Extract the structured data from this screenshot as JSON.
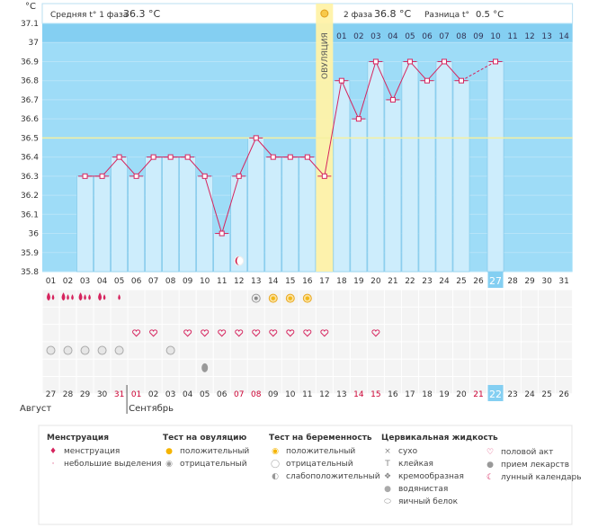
{
  "chart_data": {
    "type": "line",
    "ylabel": "°C",
    "y_ticks": [
      "37.1",
      "37",
      "36.9",
      "36.8",
      "36.7",
      "36.6",
      "36.5",
      "36.4",
      "36.3",
      "36.2",
      "36.1",
      "36",
      "35.9",
      "35.8"
    ],
    "ylim": [
      35.8,
      37.1
    ],
    "coverline": 36.5,
    "phase1": {
      "label": "Средняя t° 1 фаза",
      "value": "36.3 °C"
    },
    "phase2": {
      "label": "2 фаза",
      "value": "36.8 °C"
    },
    "difference": {
      "label": "Разница t°",
      "value": "0.5 °C"
    },
    "ovulation_label": "ОВУЛЯЦИЯ",
    "ovulation_day": 17,
    "cycle_days": [
      "01",
      "02",
      "03",
      "04",
      "05",
      "06",
      "07",
      "08",
      "09",
      "10",
      "11",
      "12",
      "13",
      "14",
      "15",
      "16",
      "17",
      "18",
      "19",
      "20",
      "21",
      "22",
      "23",
      "24",
      "25",
      "26",
      "27",
      "28",
      "29",
      "30",
      "31"
    ],
    "luteal_days": [
      "01",
      "02",
      "03",
      "04",
      "05",
      "06",
      "07",
      "08",
      "09",
      "10",
      "11",
      "12",
      "13",
      "14"
    ],
    "temperatures": [
      null,
      null,
      36.3,
      36.3,
      36.4,
      36.3,
      36.4,
      36.4,
      36.4,
      36.3,
      36.0,
      36.3,
      36.5,
      36.4,
      36.4,
      36.4,
      36.3,
      36.8,
      36.6,
      36.9,
      36.7,
      36.9,
      36.8,
      36.9,
      36.8,
      null,
      36.9,
      null,
      null,
      null,
      null
    ],
    "highlight_day": "27",
    "date_highlight": "22",
    "dates": [
      "27",
      "28",
      "29",
      "30",
      "31",
      "01",
      "02",
      "03",
      "04",
      "05",
      "06",
      "07",
      "08",
      "09",
      "10",
      "11",
      "12",
      "13",
      "14",
      "15",
      "16",
      "17",
      "18",
      "19",
      "20",
      "21",
      "22",
      "23",
      "24",
      "25",
      "26"
    ],
    "date_colors": [
      "n",
      "n",
      "n",
      "n",
      "r",
      "r",
      "n",
      "n",
      "n",
      "n",
      "n",
      "r",
      "r",
      "n",
      "n",
      "n",
      "n",
      "n",
      "r",
      "r",
      "n",
      "n",
      "n",
      "n",
      "n",
      "r",
      "n",
      "n",
      "n",
      "n",
      "n"
    ],
    "month1": "Август",
    "month2": "Сентябрь",
    "series_menstruation": [
      2,
      3,
      3,
      2,
      1,
      0,
      0,
      0,
      0,
      0,
      0,
      0,
      0,
      0,
      0,
      0,
      0,
      0,
      0,
      0,
      0,
      0,
      0,
      0,
      0,
      0,
      0,
      0,
      0,
      0,
      0
    ],
    "series_ovulation_test": [
      "",
      "",
      "",
      "",
      "",
      "",
      "",
      "",
      "",
      "",
      "",
      "",
      "neg",
      "pos",
      "pos",
      "pos",
      "",
      "",
      "",
      "",
      "",
      "",
      "",
      "",
      "",
      "",
      "",
      "",
      "",
      "",
      ""
    ],
    "series_intercourse": [
      0,
      0,
      0,
      0,
      0,
      1,
      1,
      0,
      1,
      1,
      1,
      1,
      1,
      1,
      1,
      1,
      1,
      0,
      0,
      1,
      0,
      0,
      0,
      0,
      0,
      0,
      0,
      0,
      0,
      0,
      0
    ],
    "series_pregnancy_test": [
      1,
      1,
      1,
      1,
      1,
      0,
      0,
      1,
      0,
      0,
      0,
      0,
      0,
      0,
      0,
      0,
      0,
      0,
      0,
      0,
      0,
      0,
      0,
      0,
      0,
      0,
      0,
      0,
      0,
      0,
      0
    ],
    "series_mucus_day": 10,
    "series_moon_day": 12
  },
  "legend": {
    "menstruation": {
      "title": "Менструация",
      "items": [
        "менструация",
        "небольшие выделения"
      ]
    },
    "ovulation_test": {
      "title": "Тест на овуляцию",
      "items": [
        "положительный",
        "отрицательный"
      ]
    },
    "pregnancy_test": {
      "title": "Тест на беременность",
      "items": [
        "положительный",
        "отрицательный",
        "слабоположительный"
      ]
    },
    "cervical": {
      "title": "Цервикальная жидкость",
      "items": [
        "сухо",
        "клейкая",
        "кремообразная",
        "водянистая",
        "яичный белок"
      ]
    },
    "other": {
      "items": [
        "половой акт",
        "прием лекарств",
        "лунный календарь"
      ]
    }
  },
  "colors": {
    "bg_top": "#84cff2",
    "bg_main": "#9edcf7",
    "bar": "#cdedfc",
    "bar_edge": "#7fc6e8",
    "line": "#d6245e",
    "coverline": "#f5f0a0",
    "ovulation": "#fff2a8",
    "accent_red": "#cc0033"
  }
}
